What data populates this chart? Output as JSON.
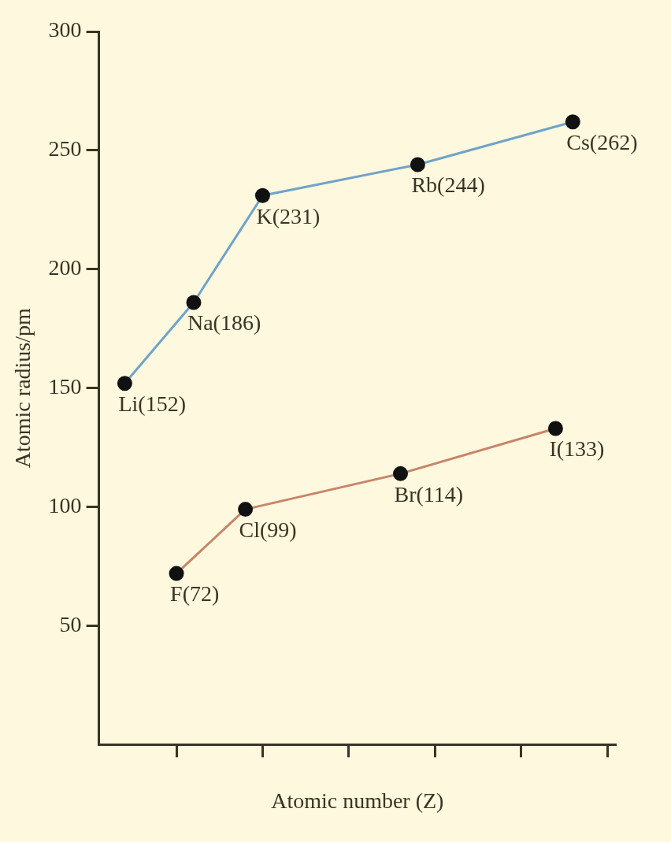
{
  "chart_data": {
    "type": "line",
    "xlabel": "Atomic number (Z)",
    "ylabel": "Atomic radius/pm",
    "categories": [
      null,
      null,
      null,
      null,
      null,
      null,
      null,
      null,
      null,
      null,
      null,
      null,
      null,
      null,
      null,
      null,
      null,
      null,
      null,
      null,
      null,
      null,
      null,
      null,
      null,
      null,
      null,
      null,
      null,
      null
    ],
    "ylim": [
      0,
      300
    ],
    "yticks": [
      50,
      100,
      150,
      200,
      250,
      300
    ],
    "tick_labels": "y",
    "grid": false,
    "legend": false,
    "marker": "circle",
    "line_style": "solid",
    "series": [
      {
        "color": "#6fa3c8",
        "values": [
          null,
          152,
          null,
          null,
          null,
          186,
          null,
          null,
          null,
          231,
          null,
          null,
          null,
          null,
          null,
          null,
          null,
          null,
          244,
          null,
          null,
          null,
          null,
          null,
          null,
          null,
          null,
          262,
          null,
          null
        ],
        "value_labels": [
          null,
          "Li(152)",
          null,
          null,
          null,
          "Na(186)",
          null,
          null,
          null,
          "K(231)",
          null,
          null,
          null,
          null,
          null,
          null,
          null,
          null,
          "Rb(244)",
          null,
          null,
          null,
          null,
          null,
          null,
          null,
          null,
          "Cs(262)",
          null,
          null
        ]
      },
      {
        "color": "#c98468",
        "values": [
          null,
          null,
          null,
          null,
          72,
          null,
          null,
          null,
          99,
          null,
          null,
          null,
          null,
          null,
          null,
          null,
          null,
          114,
          null,
          null,
          null,
          null,
          null,
          null,
          null,
          null,
          133,
          null,
          null,
          null
        ],
        "value_labels": [
          null,
          null,
          null,
          null,
          "F(72)",
          null,
          null,
          null,
          "Cl(99)",
          null,
          null,
          null,
          null,
          null,
          null,
          null,
          null,
          "Br(114)",
          null,
          null,
          null,
          null,
          null,
          null,
          null,
          null,
          "I(133)",
          null,
          null,
          null
        ]
      }
    ]
  }
}
